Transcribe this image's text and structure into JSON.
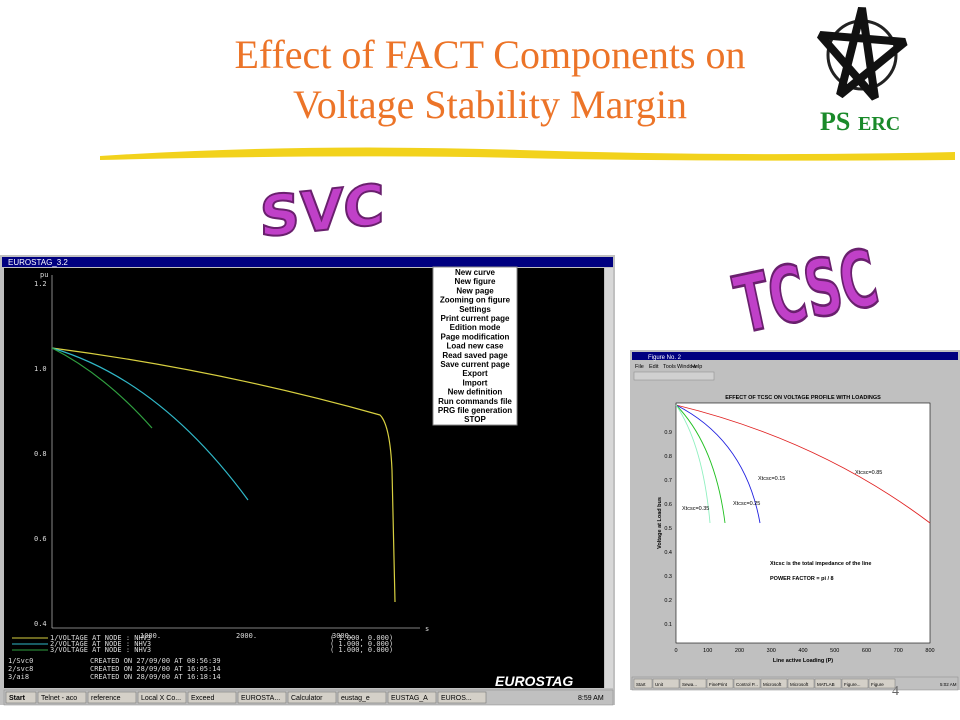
{
  "header": {
    "title_lines": [
      "Effect of FACT Components on",
      "Voltage Stability Margin"
    ],
    "logo_ps": "PS",
    "logo_erc": "ERC"
  },
  "labels": {
    "svc": "SVC",
    "tcsc": "TCSC"
  },
  "eurostag": {
    "window_title": "EUROSTAG_3.2",
    "y_unit": "pu",
    "x_unit": "s",
    "yticks": [
      "1.2",
      "1.0",
      "0.8",
      "0.6",
      "0.4"
    ],
    "xticks": [
      "1000.",
      "2000.",
      "3000."
    ],
    "menu": [
      "New curve",
      "New figure",
      "New page",
      "Zooming on figure",
      "Settings",
      "Print current page",
      "Edition mode",
      "Page modification",
      "Load new case",
      "Read saved page",
      "Save current page",
      "Export",
      "Import",
      "New definition",
      "Run commands file",
      "PRG file generation",
      "STOP"
    ],
    "legend": [
      {
        "name": "1/VOLTAGE AT NODE : NHV3",
        "scale": "( 1.000, 0.000)"
      },
      {
        "name": "2/VOLTAGE AT NODE : NHV3",
        "scale": "( 1.000, 0.000)"
      },
      {
        "name": "3/VOLTAGE AT NODE : NHV3",
        "scale": "( 1.000, 0.000)"
      }
    ],
    "created": [
      {
        "case": "1/Svc0",
        "text": "CREATED ON 27/09/00 AT 08:56:39"
      },
      {
        "case": "2/svc8",
        "text": "CREATED ON 28/09/00 AT 16:05:14"
      },
      {
        "case": "3/ai8",
        "text": "CREATED ON 28/09/00 AT 16:18:14"
      }
    ],
    "brand": "EUROSTAG",
    "taskbar": [
      "Start",
      "Telnet - aco",
      "reference",
      "Local X Co...",
      "Exceed",
      "EUROSTA...",
      "Calculator",
      "eustag_e",
      "EUSTAG_A",
      "EUROS..."
    ],
    "clock": "8:59 AM"
  },
  "matlab": {
    "window_title": "Figure No. 2",
    "menu": [
      "File",
      "Edit",
      "Tools",
      "Window",
      "Help"
    ],
    "plot_title": "EFFECT OF TCSC ON VOLTAGE PROFILE WITH LOADINGS",
    "ylabel": "Voltage at Load bus",
    "xlabel": "Line active Loading (P)",
    "yticks": [
      "0.9",
      "0.8",
      "0.7",
      "0.6",
      "0.5",
      "0.4",
      "0.3",
      "0.2",
      "0.1"
    ],
    "xticks": [
      "0",
      "100",
      "200",
      "300",
      "400",
      "500",
      "600",
      "700",
      "800"
    ],
    "annotations": [
      "Xtcsc=0.85",
      "Xtcsc=0.15",
      "Xtcsc=0.25",
      "Xtcsc=0.35"
    ],
    "note": "Xtcsc is the total impedance of the line",
    "power_factor": "POWER FACTOR = pi / 8",
    "taskbar": [
      "Start",
      "Unit",
      "Sewa...",
      "FinePrint",
      "Control P...",
      "Microsoft",
      "Microsoft",
      "MATLAB",
      "Figure...",
      "Figure"
    ],
    "clock": "5:02 AM"
  },
  "page_number": "4"
}
